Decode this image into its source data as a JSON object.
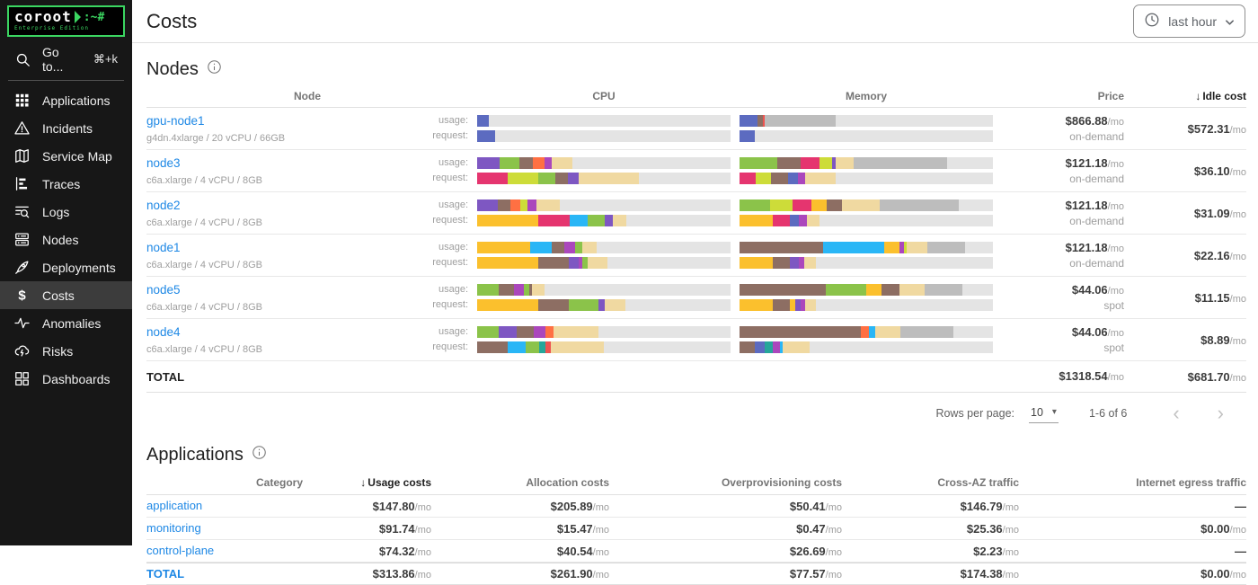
{
  "app": {
    "logo": {
      "name": "coroot",
      "suffix": ":~#",
      "edition": "Enterprise Edition"
    },
    "page_title": "Costs",
    "time_range": {
      "label": "last hour"
    }
  },
  "colors": {
    "brand_green": "#3bd661",
    "link_blue": "#1e88e5",
    "sidebar_bg": "#171717",
    "sidebar_active_bg": "#3c3c3c",
    "bar_track": "#e4e4e4"
  },
  "palette": {
    "indigo": "#5c6bc0",
    "purple": "#7e57c2",
    "magenta": "#ab47bc",
    "pink": "#e5356f",
    "brown": "#8d6e63",
    "green": "#8bc34a",
    "lime": "#cddc39",
    "amber": "#fbc02d",
    "cyan": "#29b6f6",
    "teal": "#26a69a",
    "orange": "#ff7043",
    "red": "#ef5350",
    "tan": "#f0d9a1",
    "sysgray": "#bdbdbd"
  },
  "sidebar": {
    "goto": {
      "label": "Go to...",
      "shortcut": "⌘+k"
    },
    "items": [
      {
        "id": "applications",
        "label": "Applications",
        "icon": "apps",
        "active": false
      },
      {
        "id": "incidents",
        "label": "Incidents",
        "icon": "incidents",
        "active": false
      },
      {
        "id": "service-map",
        "label": "Service Map",
        "icon": "service-map",
        "active": false
      },
      {
        "id": "traces",
        "label": "Traces",
        "icon": "traces",
        "active": false
      },
      {
        "id": "logs",
        "label": "Logs",
        "icon": "logs",
        "active": false
      },
      {
        "id": "nodes",
        "label": "Nodes",
        "icon": "nodes",
        "active": false
      },
      {
        "id": "deployments",
        "label": "Deployments",
        "icon": "deployments",
        "active": false
      },
      {
        "id": "costs",
        "label": "Costs",
        "icon": "costs",
        "active": true
      },
      {
        "id": "anomalies",
        "label": "Anomalies",
        "icon": "anomalies",
        "active": false
      },
      {
        "id": "risks",
        "label": "Risks",
        "icon": "risks",
        "active": false
      },
      {
        "id": "dashboards",
        "label": "Dashboards",
        "icon": "dashboards",
        "active": false
      }
    ]
  },
  "nodes_section": {
    "title": "Nodes",
    "columns": [
      "Node",
      "CPU",
      "Memory",
      "Price",
      "Idle cost"
    ],
    "sort_indicator": "↓",
    "row_labels": {
      "usage": "usage:",
      "request": "request:"
    },
    "rows": [
      {
        "name": "gpu-node1",
        "spec": "g4dn.4xlarge / 20 vCPU / 66GB",
        "price": "$866.88",
        "price_unit": "/mo",
        "billing": "on-demand",
        "idle": "$572.31",
        "idle_unit": "/mo",
        "bars": {
          "cpu_usage": [
            [
              "indigo",
              4.5
            ]
          ],
          "cpu_request": [
            [
              "indigo",
              7
            ]
          ],
          "mem_usage": [
            [
              "indigo",
              7
            ],
            [
              "brown",
              2.3
            ],
            [
              "red",
              0.7
            ],
            [
              "sysgray",
              28
            ]
          ],
          "mem_request": [
            [
              "indigo",
              6
            ]
          ]
        }
      },
      {
        "name": "node3",
        "spec": "c6a.xlarge / 4 vCPU / 8GB",
        "price": "$121.18",
        "price_unit": "/mo",
        "billing": "on-demand",
        "idle": "$36.10",
        "idle_unit": "/mo",
        "bars": {
          "cpu_usage": [
            [
              "purple",
              9
            ],
            [
              "green",
              7.5
            ],
            [
              "brown",
              5.5
            ],
            [
              "orange",
              4.5
            ],
            [
              "magenta",
              3
            ],
            [
              "tan",
              8
            ]
          ],
          "cpu_request": [
            [
              "pink",
              12
            ],
            [
              "lime",
              12
            ],
            [
              "green",
              7
            ],
            [
              "brown",
              5
            ],
            [
              "purple",
              4
            ],
            [
              "tan",
              24
            ]
          ],
          "mem_usage": [
            [
              "green",
              15
            ],
            [
              "brown",
              9
            ],
            [
              "pink",
              7.5
            ],
            [
              "lime",
              5
            ],
            [
              "purple",
              1.5
            ],
            [
              "tan",
              7
            ],
            [
              "sysgray",
              37
            ]
          ],
          "mem_request": [
            [
              "pink",
              6.5
            ],
            [
              "lime",
              6
            ],
            [
              "brown",
              6.5
            ],
            [
              "indigo",
              4
            ],
            [
              "magenta",
              3
            ],
            [
              "tan",
              12
            ]
          ]
        }
      },
      {
        "name": "node2",
        "spec": "c6a.xlarge / 4 vCPU / 8GB",
        "price": "$121.18",
        "price_unit": "/mo",
        "billing": "on-demand",
        "idle": "$31.09",
        "idle_unit": "/mo",
        "bars": {
          "cpu_usage": [
            [
              "purple",
              8
            ],
            [
              "brown",
              5
            ],
            [
              "orange",
              4
            ],
            [
              "lime",
              3
            ],
            [
              "magenta",
              3.5
            ],
            [
              "tan",
              9
            ]
          ],
          "cpu_request": [
            [
              "amber",
              24
            ],
            [
              "pink",
              12.5
            ],
            [
              "cyan",
              7
            ],
            [
              "green",
              7
            ],
            [
              "purple",
              3
            ],
            [
              "tan",
              5.5
            ]
          ],
          "mem_usage": [
            [
              "green",
              12
            ],
            [
              "lime",
              9
            ],
            [
              "pink",
              7.5
            ],
            [
              "amber",
              6
            ],
            [
              "brown",
              6
            ],
            [
              "tan",
              15
            ],
            [
              "sysgray",
              31
            ]
          ],
          "mem_request": [
            [
              "amber",
              13
            ],
            [
              "pink",
              7
            ],
            [
              "indigo",
              3.5
            ],
            [
              "magenta",
              3
            ],
            [
              "tan",
              5
            ]
          ]
        }
      },
      {
        "name": "node1",
        "spec": "c6a.xlarge / 4 vCPU / 8GB",
        "price": "$121.18",
        "price_unit": "/mo",
        "billing": "on-demand",
        "idle": "$22.16",
        "idle_unit": "/mo",
        "bars": {
          "cpu_usage": [
            [
              "amber",
              21
            ],
            [
              "cyan",
              8.5
            ],
            [
              "brown",
              5
            ],
            [
              "magenta",
              4
            ],
            [
              "green",
              3
            ],
            [
              "tan",
              5.5
            ]
          ],
          "cpu_request": [
            [
              "amber",
              24
            ],
            [
              "brown",
              12
            ],
            [
              "purple",
              4
            ],
            [
              "magenta",
              1.5
            ],
            [
              "green",
              2
            ],
            [
              "tan",
              8
            ]
          ],
          "mem_usage": [
            [
              "brown",
              33
            ],
            [
              "cyan",
              24
            ],
            [
              "amber",
              6
            ],
            [
              "magenta",
              2
            ],
            [
              "lime",
              1
            ],
            [
              "tan",
              8
            ],
            [
              "sysgray",
              15
            ]
          ],
          "mem_request": [
            [
              "amber",
              13
            ],
            [
              "brown",
              7
            ],
            [
              "purple",
              3.5
            ],
            [
              "magenta",
              2
            ],
            [
              "tan",
              4.5
            ]
          ]
        }
      },
      {
        "name": "node5",
        "spec": "c6a.xlarge / 4 vCPU / 8GB",
        "price": "$44.06",
        "price_unit": "/mo",
        "billing": "spot",
        "idle": "$11.15",
        "idle_unit": "/mo",
        "bars": {
          "cpu_usage": [
            [
              "green",
              8.5
            ],
            [
              "brown",
              6
            ],
            [
              "magenta",
              4
            ],
            [
              "green",
              2
            ],
            [
              "brown",
              1
            ],
            [
              "tan",
              5
            ]
          ],
          "cpu_request": [
            [
              "amber",
              24
            ],
            [
              "brown",
              12
            ],
            [
              "green",
              12
            ],
            [
              "purple",
              2.5
            ],
            [
              "tan",
              8
            ]
          ],
          "mem_usage": [
            [
              "brown",
              34
            ],
            [
              "green",
              16
            ],
            [
              "amber",
              6
            ],
            [
              "brown",
              7
            ],
            [
              "tan",
              10
            ],
            [
              "sysgray",
              15
            ]
          ],
          "mem_request": [
            [
              "amber",
              13
            ],
            [
              "brown",
              7
            ],
            [
              "amber",
              2
            ],
            [
              "purple",
              2
            ],
            [
              "magenta",
              2
            ],
            [
              "tan",
              4
            ]
          ]
        }
      },
      {
        "name": "node4",
        "spec": "c6a.xlarge / 4 vCPU / 8GB",
        "price": "$44.06",
        "price_unit": "/mo",
        "billing": "spot",
        "idle": "$8.89",
        "idle_unit": "/mo",
        "bars": {
          "cpu_usage": [
            [
              "green",
              8.5
            ],
            [
              "purple",
              7
            ],
            [
              "brown",
              7
            ],
            [
              "magenta",
              4.5
            ],
            [
              "orange",
              3
            ],
            [
              "tan",
              18
            ]
          ],
          "cpu_request": [
            [
              "brown",
              12
            ],
            [
              "cyan",
              7
            ],
            [
              "green",
              5.5
            ],
            [
              "teal",
              2.5
            ],
            [
              "red",
              2
            ],
            [
              "tan",
              21
            ]
          ],
          "mem_usage": [
            [
              "brown",
              48
            ],
            [
              "orange",
              3
            ],
            [
              "cyan",
              2.5
            ],
            [
              "tan",
              10
            ],
            [
              "sysgray",
              21
            ]
          ],
          "mem_request": [
            [
              "brown",
              6
            ],
            [
              "indigo",
              4
            ],
            [
              "teal",
              3
            ],
            [
              "magenta",
              3
            ],
            [
              "cyan",
              1
            ],
            [
              "tan",
              10.5
            ]
          ]
        }
      }
    ],
    "total": {
      "label": "TOTAL",
      "price": "$1318.54",
      "idle": "$681.70",
      "unit": "/mo"
    },
    "pagination": {
      "rows_per_page_label": "Rows per page:",
      "rows_per_page": "10",
      "range": "1-6 of 6",
      "prev": "‹",
      "next": "›"
    }
  },
  "applications_section": {
    "title": "Applications",
    "columns": [
      "Category",
      "Usage costs",
      "Allocation costs",
      "Overprovisioning costs",
      "Cross-AZ traffic",
      "Internet egress traffic"
    ],
    "sort_indicator": "↓",
    "rows": [
      {
        "category": "application",
        "cells": [
          {
            "v": "$147.80",
            "u": "/mo"
          },
          {
            "v": "$205.89",
            "u": "/mo"
          },
          {
            "v": "$50.41",
            "u": "/mo"
          },
          {
            "v": "$146.79",
            "u": "/mo"
          },
          {
            "v": "—",
            "u": ""
          }
        ]
      },
      {
        "category": "monitoring",
        "cells": [
          {
            "v": "$91.74",
            "u": "/mo"
          },
          {
            "v": "$15.47",
            "u": "/mo"
          },
          {
            "v": "$0.47",
            "u": "/mo"
          },
          {
            "v": "$25.36",
            "u": "/mo"
          },
          {
            "v": "$0.00",
            "u": "/mo"
          }
        ]
      },
      {
        "category": "control-plane",
        "cells": [
          {
            "v": "$74.32",
            "u": "/mo"
          },
          {
            "v": "$40.54",
            "u": "/mo"
          },
          {
            "v": "$26.69",
            "u": "/mo"
          },
          {
            "v": "$2.23",
            "u": "/mo"
          },
          {
            "v": "—",
            "u": ""
          }
        ]
      }
    ],
    "total": {
      "label": "TOTAL",
      "cells": [
        {
          "v": "$313.86",
          "u": "/mo"
        },
        {
          "v": "$261.90",
          "u": "/mo"
        },
        {
          "v": "$77.57",
          "u": "/mo"
        },
        {
          "v": "$174.38",
          "u": "/mo"
        },
        {
          "v": "$0.00",
          "u": "/mo"
        }
      ]
    }
  }
}
